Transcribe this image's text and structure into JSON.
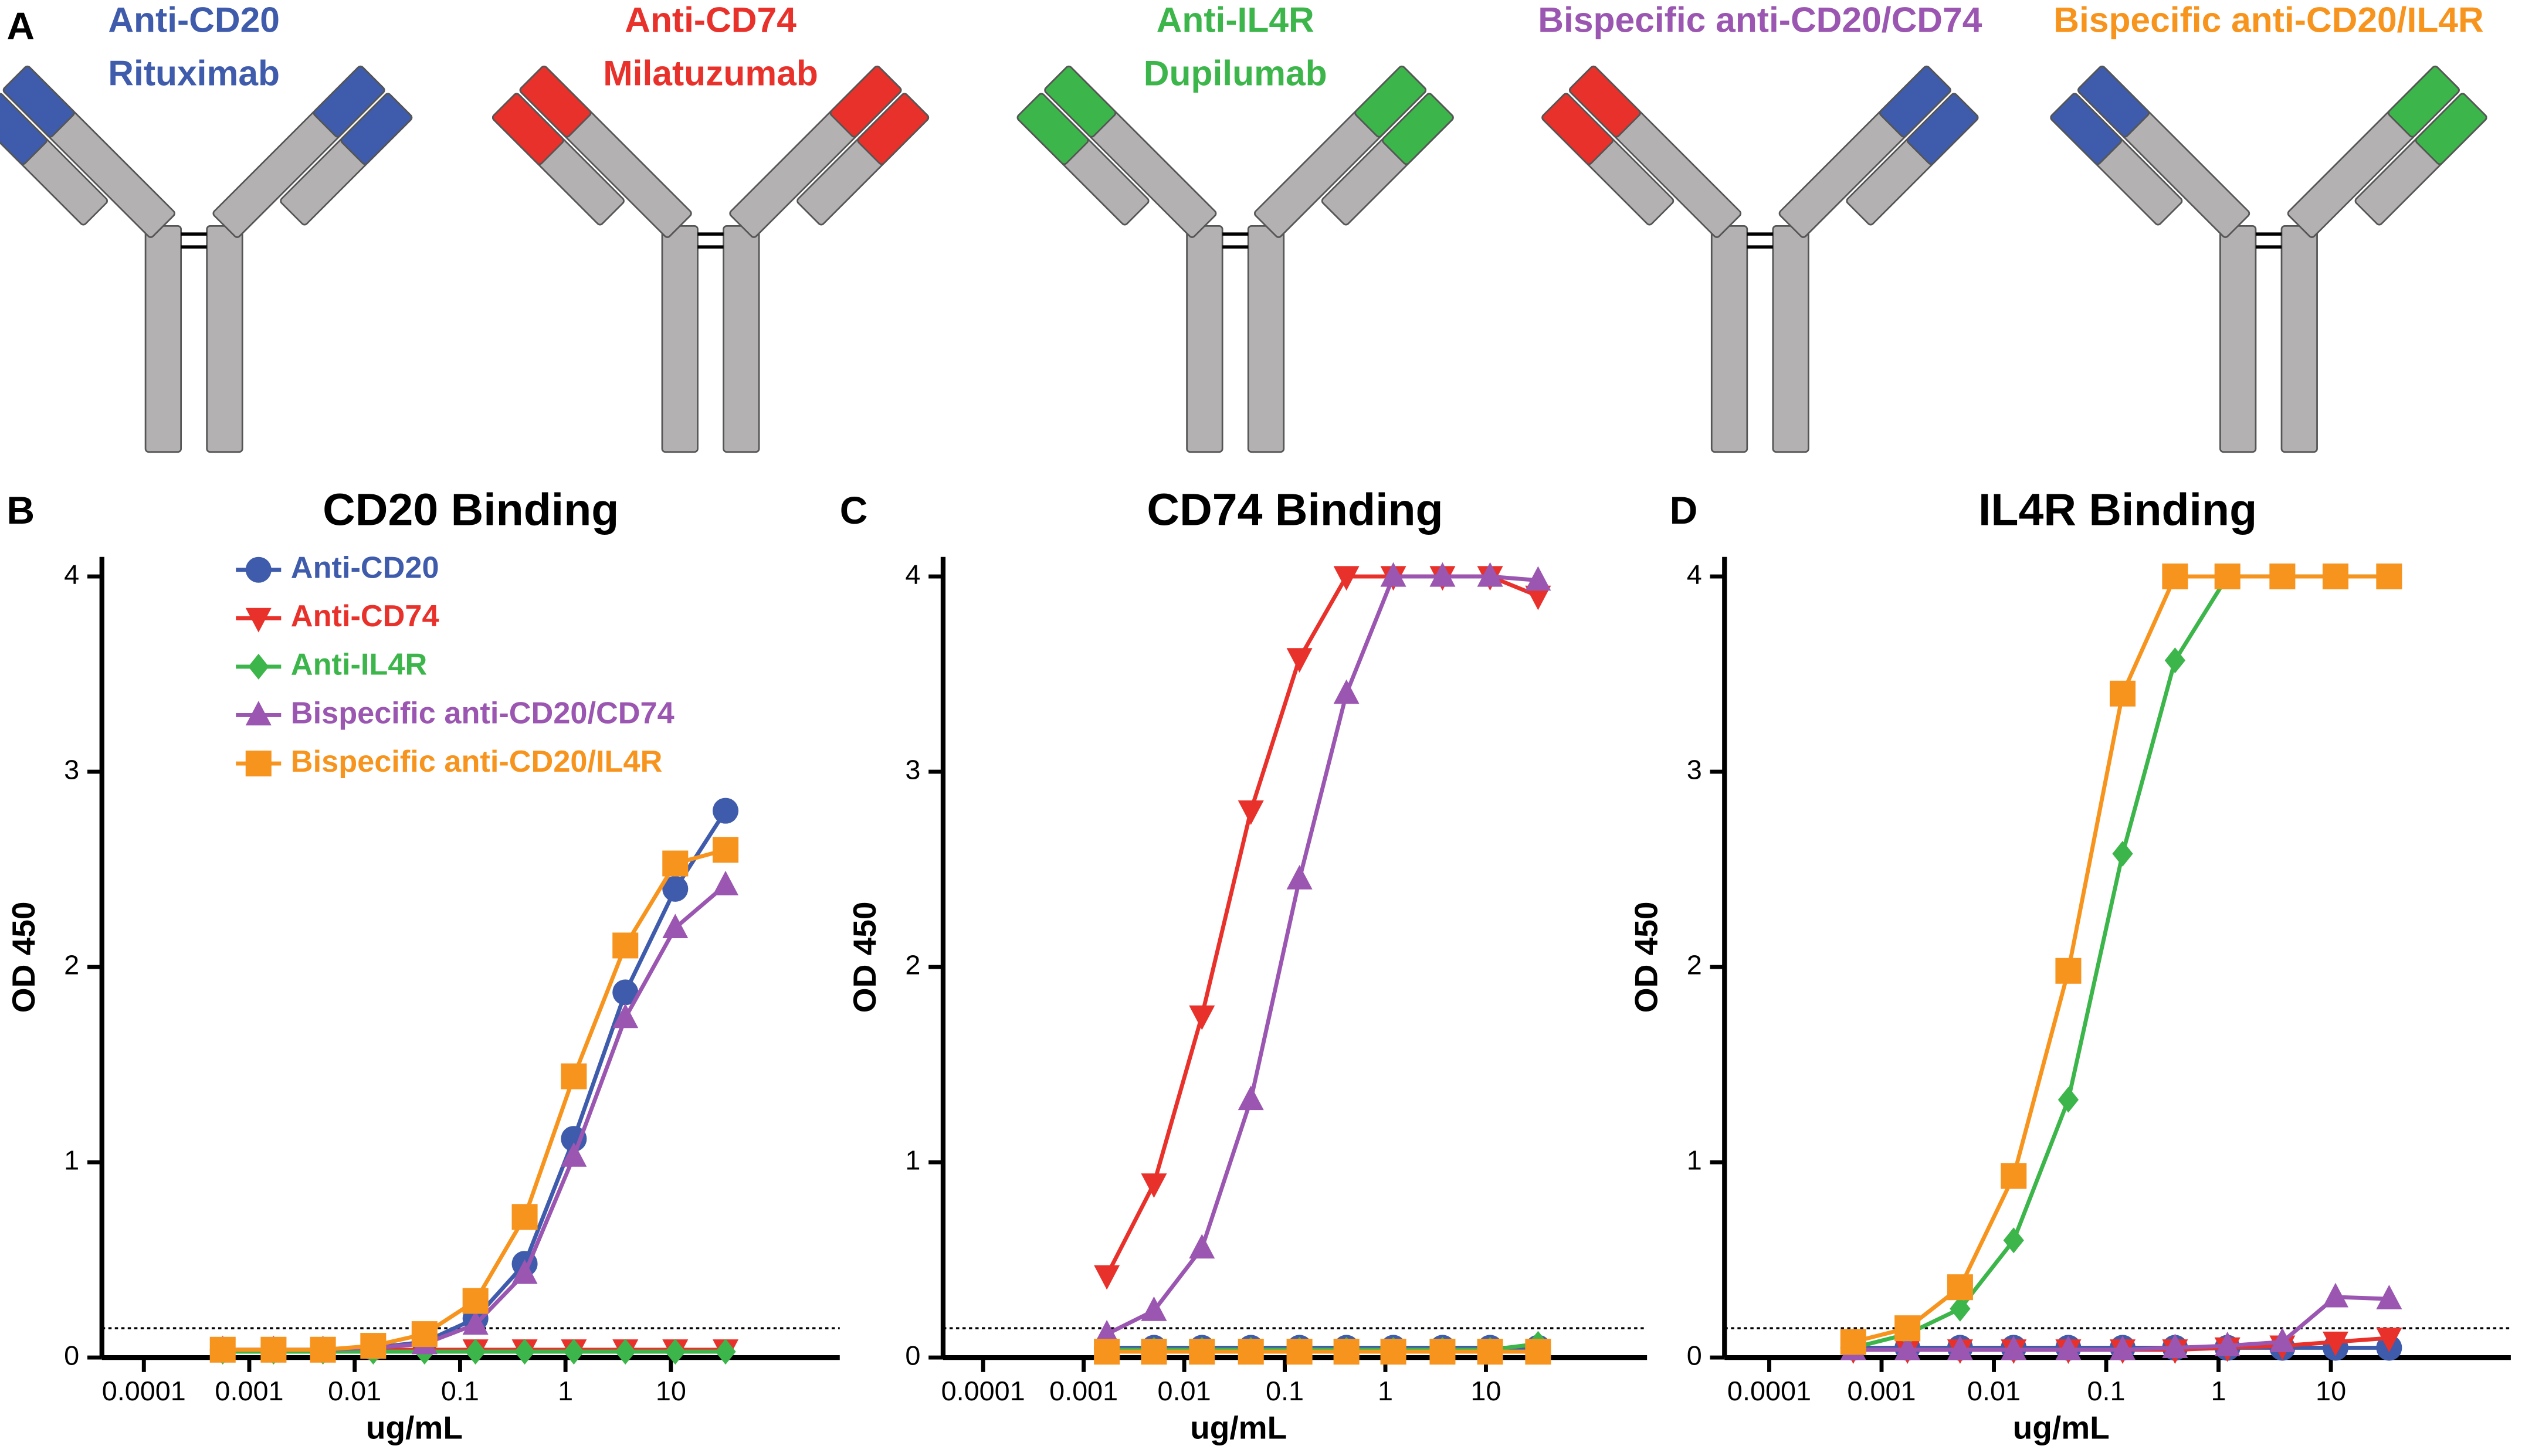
{
  "panel_a": {
    "label": "A",
    "antibodies": [
      {
        "name": "Anti-CD20",
        "drug": "Rituximab",
        "color": "#3f5bab",
        "arms": [
          "#3f5bab",
          "#3f5bab"
        ]
      },
      {
        "name": "Anti-CD74",
        "drug": "Milatuzumab",
        "color": "#e8312a",
        "arms": [
          "#e8312a",
          "#e8312a"
        ]
      },
      {
        "name": "Anti-IL4R",
        "drug": "Dupilumab",
        "color": "#3cb54a",
        "arms": [
          "#3cb54a",
          "#3cb54a"
        ]
      },
      {
        "name": "Bispecific anti-CD20/CD74",
        "color": "#9a56b0",
        "arms": [
          "#e8312a",
          "#3f5bab"
        ]
      },
      {
        "name": "Bispecific anti-CD20/IL4R",
        "color": "#f7941d",
        "arms": [
          "#3f5bab",
          "#3cb54a"
        ]
      }
    ]
  },
  "chart_data": [
    {
      "panel": "B",
      "type": "line",
      "title": "CD20 Binding",
      "x_label": "ug/mL",
      "y_label": "OD 450",
      "x_scale": "log",
      "xlim": [
        4e-05,
        400
      ],
      "xticks": [
        0.0001,
        0.001,
        0.01,
        0.1,
        1,
        10
      ],
      "ylim": [
        0,
        4.1
      ],
      "yticks": [
        0,
        1,
        2,
        3,
        4
      ],
      "threshold": 0.15,
      "legend": true,
      "legend_position": "upper left",
      "x": [
        0.00056,
        0.0017,
        0.005,
        0.015,
        0.046,
        0.14,
        0.41,
        1.2,
        3.7,
        11,
        33
      ],
      "series": [
        {
          "name": "Anti-CD20",
          "color": "#3f5bab",
          "marker": "circle",
          "values": [
            0.04,
            0.04,
            0.04,
            0.05,
            0.08,
            0.2,
            0.48,
            1.12,
            1.87,
            2.4,
            2.8
          ]
        },
        {
          "name": "Anti-CD74",
          "color": "#e8312a",
          "marker": "triangle-down",
          "values": [
            0.04,
            0.04,
            0.04,
            0.04,
            0.04,
            0.04,
            0.04,
            0.04,
            0.04,
            0.04,
            0.04
          ]
        },
        {
          "name": "Anti-IL4R",
          "color": "#3cb54a",
          "marker": "diamond",
          "values": [
            0.03,
            0.03,
            0.03,
            0.03,
            0.03,
            0.03,
            0.03,
            0.03,
            0.03,
            0.03,
            0.03
          ]
        },
        {
          "name": "Bispecific anti-CD20/CD74",
          "color": "#9a56b0",
          "marker": "triangle",
          "values": [
            0.04,
            0.04,
            0.04,
            0.05,
            0.07,
            0.17,
            0.43,
            1.03,
            1.74,
            2.2,
            2.42
          ]
        },
        {
          "name": "Bispecific anti-CD20/IL4R",
          "color": "#f7941d",
          "marker": "square",
          "values": [
            0.04,
            0.04,
            0.04,
            0.06,
            0.12,
            0.29,
            0.72,
            1.44,
            2.11,
            2.53,
            2.6
          ]
        }
      ]
    },
    {
      "panel": "C",
      "type": "line",
      "title": "CD74 Binding",
      "x_label": "ug/mL",
      "y_label": "OD 450",
      "x_scale": "log",
      "xlim": [
        4e-05,
        400
      ],
      "xticks": [
        0.0001,
        0.001,
        0.01,
        0.1,
        1,
        10
      ],
      "ylim": [
        0,
        4.1
      ],
      "yticks": [
        0,
        1,
        2,
        3,
        4
      ],
      "threshold": 0.15,
      "legend": false,
      "x": [
        0.00056,
        0.0017,
        0.005,
        0.015,
        0.046,
        0.14,
        0.41,
        1.2,
        3.7,
        11,
        33
      ],
      "series": [
        {
          "name": "Anti-CD20",
          "color": "#3f5bab",
          "marker": "circle",
          "values": [
            null,
            0.05,
            0.05,
            0.05,
            0.05,
            0.05,
            0.05,
            0.05,
            0.05,
            0.05,
            0.05
          ]
        },
        {
          "name": "Anti-CD74",
          "color": "#e8312a",
          "marker": "triangle-down",
          "values": [
            null,
            0.42,
            0.89,
            1.75,
            2.8,
            3.58,
            4,
            4,
            4,
            4,
            3.9
          ]
        },
        {
          "name": "Anti-IL4R",
          "color": "#3cb54a",
          "marker": "diamond",
          "values": [
            null,
            0.04,
            0.04,
            0.04,
            0.04,
            0.04,
            0.04,
            0.04,
            0.04,
            0.04,
            0.07
          ]
        },
        {
          "name": "Bispecific anti-CD20/CD74",
          "color": "#9a56b0",
          "marker": "triangle",
          "values": [
            null,
            0.12,
            0.24,
            0.56,
            1.32,
            2.45,
            3.4,
            4,
            4,
            4,
            3.98
          ]
        },
        {
          "name": "Bispecific anti-CD20/IL4R",
          "color": "#f7941d",
          "marker": "square",
          "values": [
            null,
            0.03,
            0.03,
            0.03,
            0.03,
            0.03,
            0.03,
            0.03,
            0.03,
            0.03,
            0.03
          ]
        }
      ]
    },
    {
      "panel": "D",
      "type": "line",
      "title": "IL4R Binding",
      "x_label": "ug/mL",
      "y_label": "OD 450",
      "x_scale": "log",
      "xlim": [
        4e-05,
        400
      ],
      "xticks": [
        0.0001,
        0.001,
        0.01,
        0.1,
        1,
        10
      ],
      "ylim": [
        0,
        4.1
      ],
      "yticks": [
        0,
        1,
        2,
        3,
        4
      ],
      "threshold": 0.15,
      "legend": false,
      "x": [
        0.00056,
        0.0017,
        0.005,
        0.015,
        0.046,
        0.14,
        0.41,
        1.2,
        3.7,
        11,
        33
      ],
      "series": [
        {
          "name": "Anti-CD20",
          "color": "#3f5bab",
          "marker": "circle",
          "values": [
            0.05,
            0.05,
            0.05,
            0.05,
            0.05,
            0.05,
            0.05,
            0.05,
            0.05,
            0.05,
            0.05
          ]
        },
        {
          "name": "Anti-CD74",
          "color": "#e8312a",
          "marker": "triangle-down",
          "values": [
            0.04,
            0.04,
            0.04,
            0.04,
            0.04,
            0.04,
            0.04,
            0.05,
            0.06,
            0.08,
            0.1
          ]
        },
        {
          "name": "Anti-IL4R",
          "color": "#3cb54a",
          "marker": "diamond",
          "values": [
            0.05,
            0.12,
            0.25,
            0.6,
            1.32,
            2.58,
            3.57,
            4,
            4,
            4,
            4
          ]
        },
        {
          "name": "Bispecific anti-CD20/CD74",
          "color": "#9a56b0",
          "marker": "triangle",
          "values": [
            0.04,
            0.04,
            0.04,
            0.04,
            0.04,
            0.04,
            0.05,
            0.06,
            0.08,
            0.31,
            0.3
          ]
        },
        {
          "name": "Bispecific anti-CD20/IL4R",
          "color": "#f7941d",
          "marker": "square",
          "values": [
            0.08,
            0.15,
            0.36,
            0.93,
            1.98,
            3.4,
            4,
            4,
            4,
            4,
            4
          ]
        }
      ]
    }
  ]
}
